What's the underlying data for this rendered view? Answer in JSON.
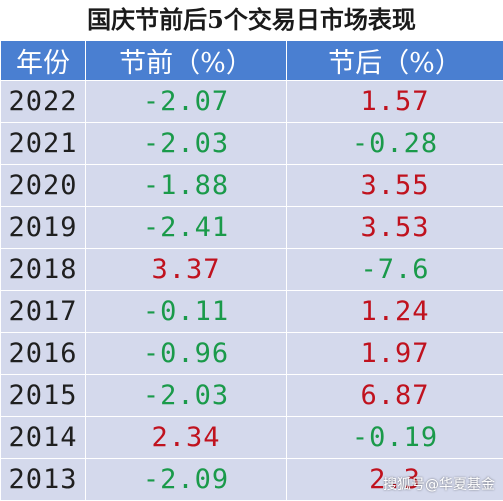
{
  "title": "国庆节前后5个交易日市场表现",
  "header": {
    "year": "年份",
    "before": "节前（%）",
    "after": "节后（%）"
  },
  "colors": {
    "header_bg": "#4a7fd1",
    "row_bg": "#d4d9ec",
    "positive": "#c0121e",
    "negative": "#1a9a4a"
  },
  "rows": [
    {
      "year": "2022",
      "before": "-2.07",
      "after": "1.57"
    },
    {
      "year": "2021",
      "before": "-2.03",
      "after": "-0.28"
    },
    {
      "year": "2020",
      "before": "-1.88",
      "after": "3.55"
    },
    {
      "year": "2019",
      "before": "-2.41",
      "after": "3.53"
    },
    {
      "year": "2018",
      "before": "3.37",
      "after": "-7.6"
    },
    {
      "year": "2017",
      "before": "-0.11",
      "after": "1.24"
    },
    {
      "year": "2016",
      "before": "-0.96",
      "after": "1.97"
    },
    {
      "year": "2015",
      "before": "-2.03",
      "after": "6.87"
    },
    {
      "year": "2014",
      "before": "2.34",
      "after": "-0.19"
    },
    {
      "year": "2013",
      "before": "-2.09",
      "after": "2.3"
    }
  ],
  "watermark": "搜狐号@华夏基金"
}
